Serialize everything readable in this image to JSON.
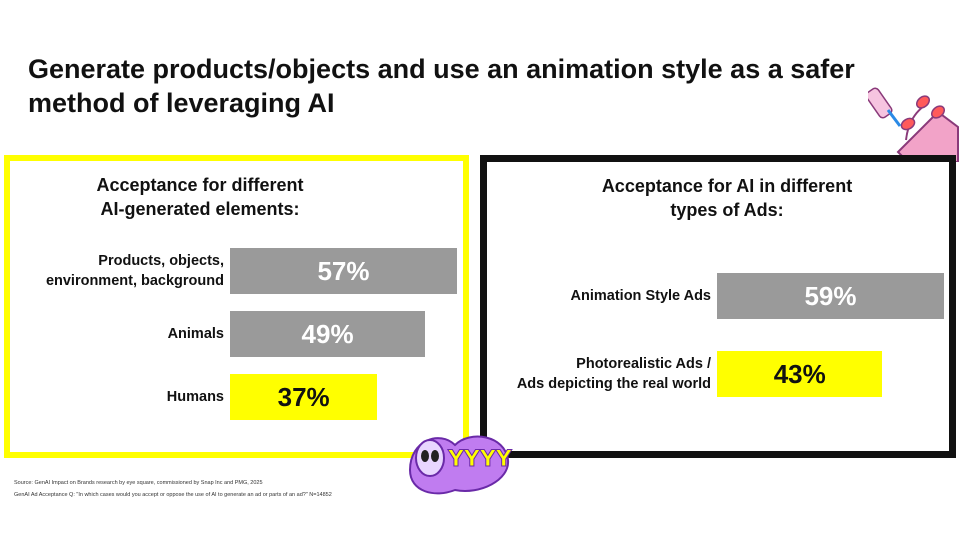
{
  "title": "Generate products/objects and use an animation style as a safer method of leveraging AI",
  "colors": {
    "highlight": "#ffff00",
    "neutral_bar": "#9a9a9a",
    "frame_dark": "#111111"
  },
  "chart_data": [
    {
      "type": "bar",
      "orientation": "horizontal",
      "title": "Acceptance for different AI-generated elements:",
      "categories": [
        "Products, objects, environment, background",
        "Animals",
        "Humans"
      ],
      "category_lines": [
        [
          "Products, objects,",
          "environment, background"
        ],
        [
          "Animals"
        ],
        [
          "Humans"
        ]
      ],
      "values": [
        57,
        49,
        37
      ],
      "value_labels": [
        "57%",
        "49%",
        "37%"
      ],
      "highlight": [
        false,
        false,
        true
      ],
      "xlim": [
        0,
        57
      ]
    },
    {
      "type": "bar",
      "orientation": "horizontal",
      "title": "Acceptance for AI in different types of Ads:",
      "categories": [
        "Animation Style Ads",
        "Photorealistic Ads / Ads depicting the real world"
      ],
      "category_lines": [
        [
          "Animation Style Ads"
        ],
        [
          "Photorealistic Ads /",
          "Ads depicting the real world"
        ]
      ],
      "values": [
        59,
        43
      ],
      "value_labels": [
        "59%",
        "43%"
      ],
      "highlight": [
        false,
        true
      ],
      "xlim": [
        0,
        59
      ]
    }
  ],
  "panels": {
    "left_title": [
      "Acceptance for different",
      "AI-generated elements:"
    ],
    "right_title": [
      "Acceptance for AI in different",
      "types of Ads:"
    ]
  },
  "footnotes": {
    "source": "Source: GenAI Impact on Brands research by eye square, commissioned by Snap Inc and PMG, 2025",
    "question": "GenAI Ad Acceptance Q: \"In which cases would you accept or oppose the use of AI to generate an ad or parts of an ad?\" N=14852"
  }
}
